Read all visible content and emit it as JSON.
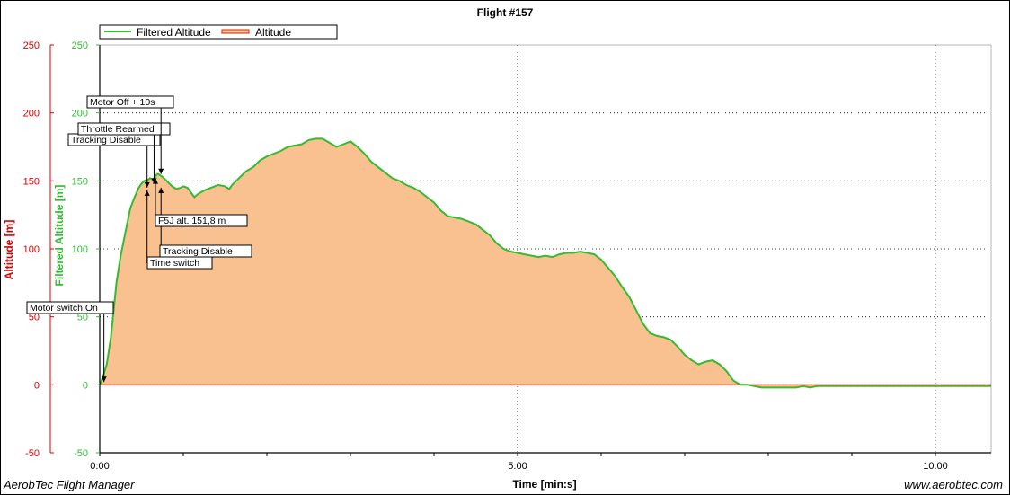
{
  "app": {
    "name": "AerobTec Flight Manager",
    "website": "www.aerobtec.com"
  },
  "chart_data": {
    "type": "area",
    "title": "Flight #157",
    "xlabel": "Time [min:s]",
    "ylabel_left": "Altitude [m]",
    "ylabel_right": "Filtered Altitude [m]",
    "ylim": [
      -50,
      250
    ],
    "xlim_seconds": [
      0,
      640
    ],
    "y_ticks": [
      "-50",
      "0",
      "50",
      "100",
      "150",
      "200",
      "250"
    ],
    "x_ticks": [
      "0:00",
      "5:00",
      "10:00"
    ],
    "grid": true,
    "legend_position": "top-left",
    "colors": {
      "filtered": "#33bb33",
      "altitude_line": "#dd2200",
      "area_fill": "#f9c18f",
      "left_axis": "#dd0000",
      "right_axis": "#33bb33",
      "grid": "#000000"
    },
    "series": [
      {
        "name": "Filtered Altitude",
        "x_seconds": [
          0,
          2,
          5,
          8,
          10,
          12,
          15,
          18,
          20,
          22,
          25,
          28,
          30,
          32,
          35,
          36,
          38,
          40,
          41,
          42,
          45,
          48,
          50,
          52,
          55,
          58,
          60,
          63,
          65,
          68,
          70,
          75,
          80,
          85,
          90,
          93,
          95,
          98,
          100,
          105,
          110,
          115,
          120,
          125,
          130,
          135,
          140,
          145,
          150,
          155,
          160,
          165,
          170,
          175,
          180,
          185,
          190,
          195,
          200,
          205,
          210,
          215,
          220,
          225,
          230,
          235,
          240,
          245,
          250,
          255,
          260,
          265,
          270,
          275,
          280,
          285,
          290,
          295,
          300,
          305,
          310,
          315,
          320,
          325,
          330,
          335,
          340,
          345,
          350,
          355,
          360,
          365,
          370,
          375,
          380,
          385,
          390,
          395,
          400,
          405,
          410,
          415,
          420,
          425,
          430,
          435,
          440,
          445,
          450,
          455,
          460,
          465,
          470,
          475,
          480,
          485,
          490,
          495,
          500,
          505,
          510,
          515,
          520,
          525,
          530,
          535,
          540,
          545,
          550,
          555,
          560,
          565,
          570,
          575,
          580,
          585,
          590,
          595,
          600,
          610,
          620,
          630,
          640
        ],
        "values": [
          0,
          5,
          15,
          35,
          55,
          75,
          95,
          110,
          120,
          130,
          138,
          145,
          148,
          150,
          151,
          152,
          151,
          153,
          155,
          155,
          153,
          150,
          148,
          146,
          144,
          145,
          146,
          145,
          142,
          138,
          140,
          143,
          145,
          147,
          146,
          144,
          147,
          150,
          152,
          157,
          160,
          165,
          168,
          170,
          172,
          175,
          176,
          177,
          180,
          181,
          181,
          178,
          175,
          177,
          179,
          175,
          170,
          164,
          160,
          156,
          152,
          150,
          147,
          145,
          142,
          138,
          134,
          128,
          124,
          123,
          122,
          120,
          118,
          114,
          110,
          104,
          100,
          98,
          97,
          96,
          95,
          94,
          95,
          94,
          96,
          97,
          97,
          98,
          97,
          96,
          92,
          86,
          80,
          72,
          65,
          55,
          45,
          38,
          36,
          35,
          33,
          28,
          22,
          18,
          15,
          17,
          18,
          15,
          10,
          3,
          0,
          0,
          -1,
          -2,
          -2,
          -2,
          -2,
          -2,
          -2,
          -1,
          -2,
          -1,
          -1,
          -1,
          -1,
          -1,
          -1,
          -1,
          -1,
          -1,
          -1,
          -1,
          -1,
          -1,
          -1,
          -1,
          -1,
          -1,
          -1,
          -1,
          -1,
          -1,
          -1
        ]
      },
      {
        "name": "Altitude",
        "values_note": ""
      }
    ],
    "annotations": [
      {
        "label": "Motor switch On",
        "t": 3,
        "y": 2
      },
      {
        "label": "Time switch",
        "t": 34,
        "y": 143
      },
      {
        "label": "Tracking Disable",
        "t": 34,
        "y": 145
      },
      {
        "label": "Throttle Rearmed",
        "t": 39,
        "y": 148
      },
      {
        "label": "Tracking Disable",
        "t": 44,
        "y": 145
      },
      {
        "label": "F5J alt. 151,8 m",
        "t": 40,
        "y": 151.8
      },
      {
        "label": "Motor Off + 10s",
        "t": 44,
        "y": 155
      }
    ]
  }
}
